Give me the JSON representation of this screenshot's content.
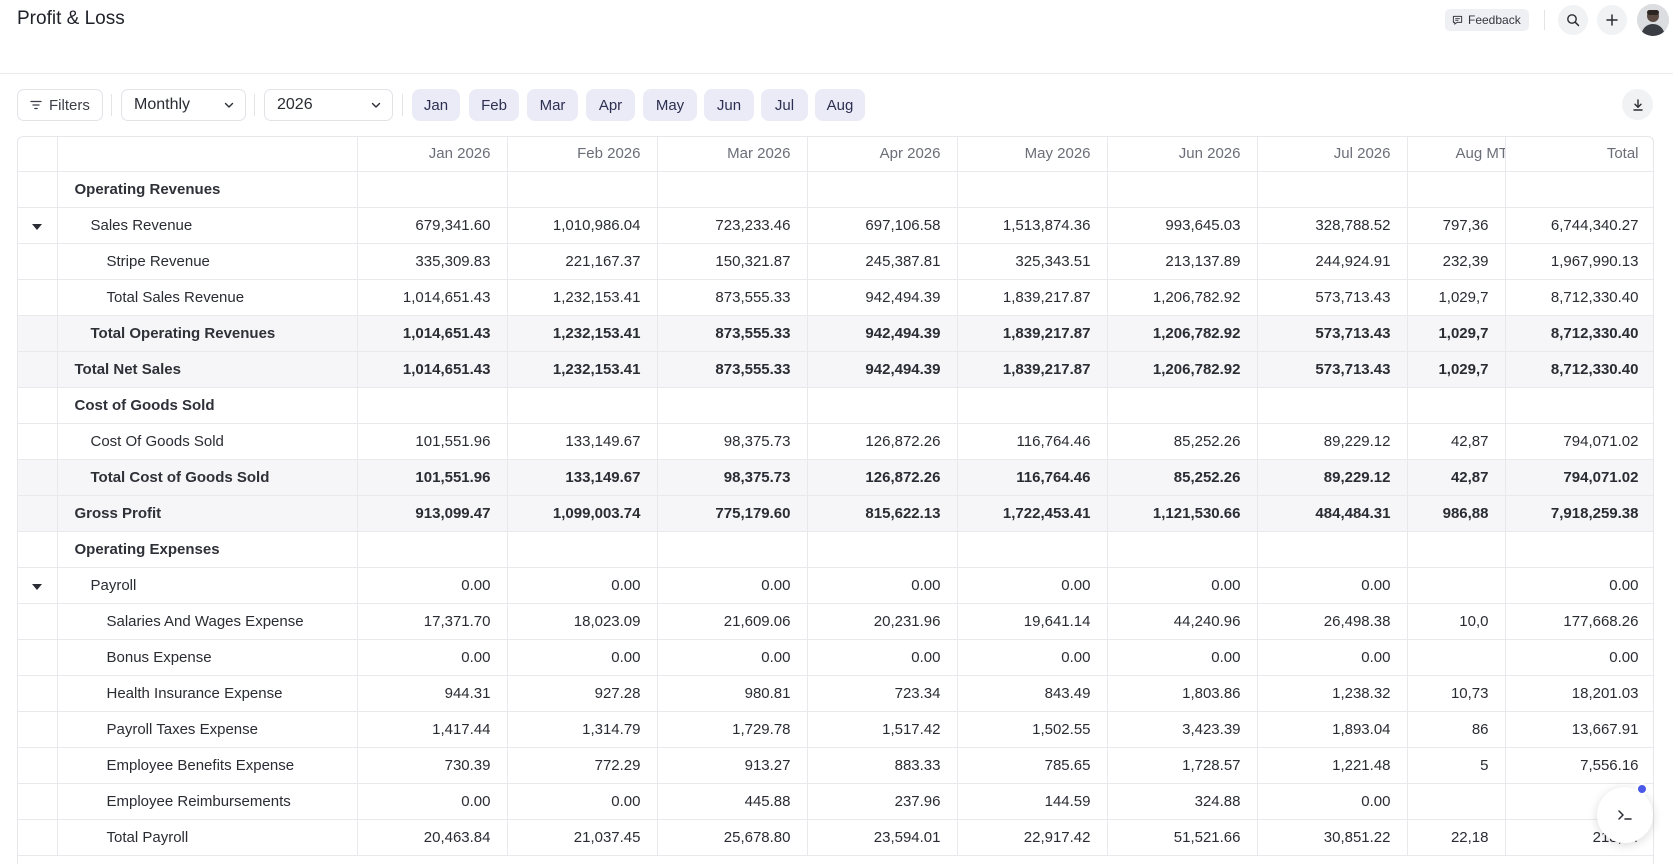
{
  "header": {
    "title": "Profit & Loss",
    "feedback_label": "Feedback"
  },
  "toolbar": {
    "filters_label": "Filters",
    "period_value": "Monthly",
    "year_value": "2026",
    "months": [
      "Jan",
      "Feb",
      "Mar",
      "Apr",
      "May",
      "Jun",
      "Jul",
      "Aug"
    ]
  },
  "table": {
    "columns": [
      "Jan 2026",
      "Feb 2026",
      "Mar 2026",
      "Apr 2026",
      "May 2026",
      "Jun 2026",
      "Jul 2026",
      "Aug MT",
      "Total"
    ],
    "rows": [
      {
        "label": "Operating Revenues",
        "indent": 0,
        "style": "section",
        "toggle": false,
        "values": [
          "",
          "",
          "",
          "",
          "",
          "",
          "",
          "",
          ""
        ]
      },
      {
        "label": "Sales Revenue",
        "indent": 1,
        "style": "normal",
        "toggle": true,
        "values": [
          "679,341.60",
          "1,010,986.04",
          "723,233.46",
          "697,106.58",
          "1,513,874.36",
          "993,645.03",
          "328,788.52",
          "797,36",
          "6,744,340.27"
        ]
      },
      {
        "label": "Stripe Revenue",
        "indent": 2,
        "style": "normal",
        "toggle": false,
        "values": [
          "335,309.83",
          "221,167.37",
          "150,321.87",
          "245,387.81",
          "325,343.51",
          "213,137.89",
          "244,924.91",
          "232,39",
          "1,967,990.13"
        ]
      },
      {
        "label": "Total Sales Revenue",
        "indent": 2,
        "style": "normal",
        "toggle": false,
        "values": [
          "1,014,651.43",
          "1,232,153.41",
          "873,555.33",
          "942,494.39",
          "1,839,217.87",
          "1,206,782.92",
          "573,713.43",
          "1,029,7",
          "8,712,330.40"
        ]
      },
      {
        "label": "Total Operating Revenues",
        "indent": 1,
        "style": "total",
        "toggle": false,
        "values": [
          "1,014,651.43",
          "1,232,153.41",
          "873,555.33",
          "942,494.39",
          "1,839,217.87",
          "1,206,782.92",
          "573,713.43",
          "1,029,7",
          "8,712,330.40"
        ]
      },
      {
        "label": "Total Net Sales",
        "indent": 0,
        "style": "total",
        "toggle": false,
        "values": [
          "1,014,651.43",
          "1,232,153.41",
          "873,555.33",
          "942,494.39",
          "1,839,217.87",
          "1,206,782.92",
          "573,713.43",
          "1,029,7",
          "8,712,330.40"
        ]
      },
      {
        "label": "Cost of Goods Sold",
        "indent": 0,
        "style": "section",
        "toggle": false,
        "values": [
          "",
          "",
          "",
          "",
          "",
          "",
          "",
          "",
          ""
        ]
      },
      {
        "label": "Cost Of Goods Sold",
        "indent": 1,
        "style": "normal",
        "toggle": false,
        "values": [
          "101,551.96",
          "133,149.67",
          "98,375.73",
          "126,872.26",
          "116,764.46",
          "85,252.26",
          "89,229.12",
          "42,87",
          "794,071.02"
        ]
      },
      {
        "label": "Total Cost of Goods Sold",
        "indent": 1,
        "style": "total",
        "toggle": false,
        "values": [
          "101,551.96",
          "133,149.67",
          "98,375.73",
          "126,872.26",
          "116,764.46",
          "85,252.26",
          "89,229.12",
          "42,87",
          "794,071.02"
        ]
      },
      {
        "label": "Gross Profit",
        "indent": 0,
        "style": "total",
        "toggle": false,
        "values": [
          "913,099.47",
          "1,099,003.74",
          "775,179.60",
          "815,622.13",
          "1,722,453.41",
          "1,121,530.66",
          "484,484.31",
          "986,88",
          "7,918,259.38"
        ]
      },
      {
        "label": "Operating Expenses",
        "indent": 0,
        "style": "section",
        "toggle": false,
        "values": [
          "",
          "",
          "",
          "",
          "",
          "",
          "",
          "",
          ""
        ]
      },
      {
        "label": "Payroll",
        "indent": 1,
        "style": "normal",
        "toggle": true,
        "values": [
          "0.00",
          "0.00",
          "0.00",
          "0.00",
          "0.00",
          "0.00",
          "0.00",
          "",
          "0.00"
        ]
      },
      {
        "label": "Salaries And Wages Expense",
        "indent": 2,
        "style": "normal",
        "toggle": false,
        "values": [
          "17,371.70",
          "18,023.09",
          "21,609.06",
          "20,231.96",
          "19,641.14",
          "44,240.96",
          "26,498.38",
          "10,0",
          "177,668.26"
        ]
      },
      {
        "label": "Bonus Expense",
        "indent": 2,
        "style": "normal",
        "toggle": false,
        "values": [
          "0.00",
          "0.00",
          "0.00",
          "0.00",
          "0.00",
          "0.00",
          "0.00",
          "",
          "0.00"
        ]
      },
      {
        "label": "Health Insurance Expense",
        "indent": 2,
        "style": "normal",
        "toggle": false,
        "values": [
          "944.31",
          "927.28",
          "980.81",
          "723.34",
          "843.49",
          "1,803.86",
          "1,238.32",
          "10,73",
          "18,201.03"
        ]
      },
      {
        "label": "Payroll Taxes Expense",
        "indent": 2,
        "style": "normal",
        "toggle": false,
        "values": [
          "1,417.44",
          "1,314.79",
          "1,729.78",
          "1,517.42",
          "1,502.55",
          "3,423.39",
          "1,893.04",
          "86",
          "13,667.91"
        ]
      },
      {
        "label": "Employee Benefits Expense",
        "indent": 2,
        "style": "normal",
        "toggle": false,
        "values": [
          "730.39",
          "772.29",
          "913.27",
          "883.33",
          "785.65",
          "1,728.57",
          "1,221.48",
          "5",
          "7,556.16"
        ]
      },
      {
        "label": "Employee Reimbursements",
        "indent": 2,
        "style": "normal",
        "toggle": false,
        "values": [
          "0.00",
          "0.00",
          "445.88",
          "237.96",
          "144.59",
          "324.88",
          "0.00",
          "",
          "1,"
        ]
      },
      {
        "label": "Total Payroll",
        "indent": 2,
        "style": "normal",
        "toggle": false,
        "values": [
          "20,463.84",
          "21,037.45",
          "25,678.80",
          "23,594.01",
          "22,917.42",
          "51,521.66",
          "30,851.22",
          "22,18",
          "218,24"
        ]
      }
    ]
  },
  "colors": {
    "month_chip_bg": "#eaebf6",
    "shaded_row_bg": "#f6f6f8",
    "notification_dot": "#4a59e8"
  },
  "icons": [
    "message-icon",
    "search-icon",
    "plus-icon",
    "avatar",
    "filter-icon",
    "chevron-down-icon",
    "download-icon",
    "terminal-icon",
    "caret-down-icon"
  ]
}
